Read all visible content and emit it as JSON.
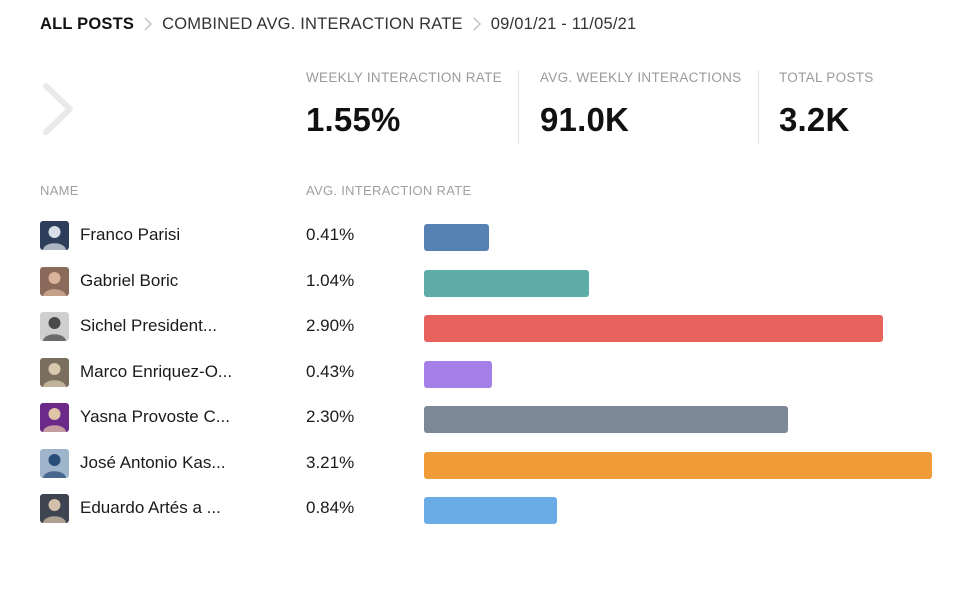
{
  "breadcrumb": {
    "items": [
      "ALL POSTS",
      "COMBINED AVG. INTERACTION RATE",
      "09/01/21 - 11/05/21"
    ]
  },
  "metrics": [
    {
      "label": "WEEKLY INTERACTION RATE",
      "value": "1.55%"
    },
    {
      "label": "AVG. WEEKLY INTERACTIONS",
      "value": "91.0K"
    },
    {
      "label": "TOTAL POSTS",
      "value": "3.2K"
    }
  ],
  "table": {
    "name_header": "NAME",
    "rate_header": "AVG. INTERACTION RATE"
  },
  "chart_data": {
    "type": "bar",
    "orientation": "horizontal",
    "title": "",
    "xlabel": "AVG. INTERACTION RATE",
    "ylabel": "NAME",
    "xlim": [
      0,
      3.21
    ],
    "categories": [
      "Franco Parisi",
      "Gabriel Boric",
      "Sichel President...",
      "Marco Enriquez-O...",
      "Yasna Provoste C...",
      "José Antonio Kas...",
      "Eduardo Artés a ..."
    ],
    "values": [
      0.41,
      1.04,
      2.9,
      0.43,
      2.3,
      3.21,
      0.84
    ],
    "labels": [
      "0.41%",
      "1.04%",
      "2.90%",
      "0.43%",
      "2.30%",
      "3.21%",
      "0.84%"
    ],
    "colors": [
      "#5582b3",
      "#5eaca6",
      "#e8625d",
      "#a47fe8",
      "#7c8896",
      "#ef9b37",
      "#6aace6"
    ]
  },
  "avatars": [
    {
      "name": "franco-parisi-avatar",
      "bg": "#2c3e5a",
      "fg": "#d8dde6"
    },
    {
      "name": "gabriel-boric-avatar",
      "bg": "#8a6a5a",
      "fg": "#d9b49a"
    },
    {
      "name": "sichel-avatar",
      "bg": "#cfcfcf",
      "fg": "#4a4a4a"
    },
    {
      "name": "marco-enriquez-avatar",
      "bg": "#7a6f5e",
      "fg": "#d7c8ae"
    },
    {
      "name": "yasna-provoste-avatar",
      "bg": "#6b2a8a",
      "fg": "#e0c4a8"
    },
    {
      "name": "jose-antonio-kast-avatar",
      "bg": "#9fb5cc",
      "fg": "#2a4e7a"
    },
    {
      "name": "eduardo-artes-avatar",
      "bg": "#3e4450",
      "fg": "#d2c0aa"
    }
  ]
}
